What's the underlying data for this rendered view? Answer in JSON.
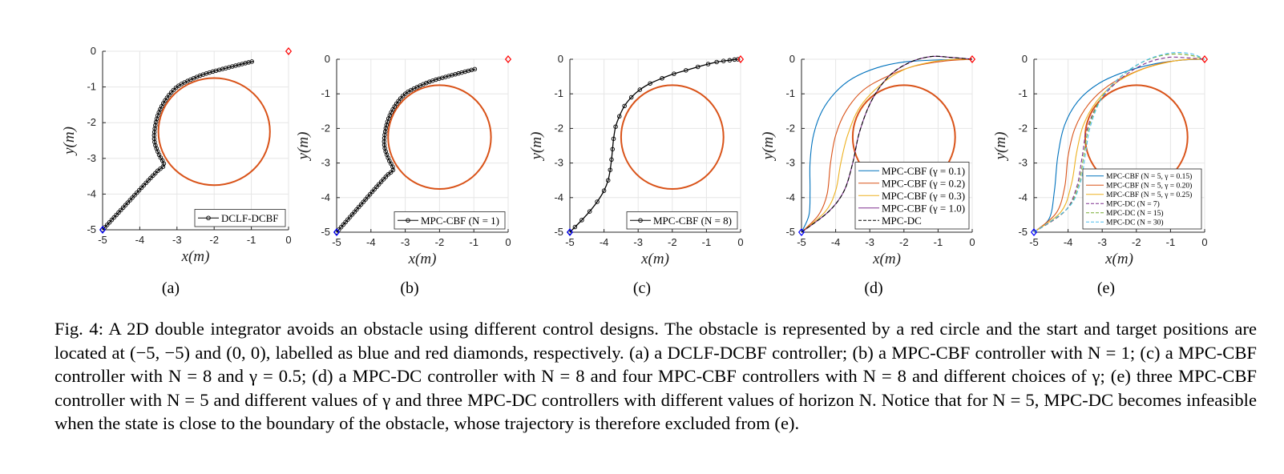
{
  "colors": {
    "obstacle": "#d95319",
    "start_marker": "#0000ff",
    "target_marker": "#ff0000",
    "grid": "#e6e6e6",
    "axis": "#262626"
  },
  "chart_data": [
    {
      "id": "a",
      "type": "line",
      "sublabel": "(a)",
      "xlabel": "x(m)",
      "ylabel": "y(m)",
      "xlim": [
        -5,
        0
      ],
      "ylim": [
        -5,
        0
      ],
      "xticks": [
        -5,
        -4,
        -3,
        -2,
        -1,
        0
      ],
      "yticks": [
        0,
        -1,
        -2,
        -3,
        -4,
        -5
      ],
      "grid": true,
      "legend_position": "bottom-right",
      "obstacle": {
        "center": [
          -2,
          -2.25
        ],
        "radius": 1.5
      },
      "start": [
        -5,
        -5
      ],
      "target": [
        0,
        0
      ],
      "series": [
        {
          "name": "DCLF-DCBF",
          "color": "#000000",
          "marker": "circle",
          "markers_dense": true,
          "points": [
            [
              -5,
              -5
            ],
            [
              -4.6,
              -4.55
            ],
            [
              -4.2,
              -4.1
            ],
            [
              -3.8,
              -3.65
            ],
            [
              -3.52,
              -3.35
            ],
            [
              -3.35,
              -3.18
            ],
            [
              -3.48,
              -2.9
            ],
            [
              -3.6,
              -2.55
            ],
            [
              -3.6,
              -2.2
            ],
            [
              -3.5,
              -1.75
            ],
            [
              -3.3,
              -1.35
            ],
            [
              -3.0,
              -1.0
            ],
            [
              -2.6,
              -0.78
            ],
            [
              -2.2,
              -0.62
            ],
            [
              -1.6,
              -0.45
            ],
            [
              -0.95,
              -0.28
            ]
          ]
        }
      ]
    },
    {
      "id": "b",
      "type": "line",
      "sublabel": "(b)",
      "xlabel": "x(m)",
      "ylabel": "y(m)",
      "xlim": [
        -5,
        0
      ],
      "ylim": [
        -5,
        0
      ],
      "xticks": [
        -5,
        -4,
        -3,
        -2,
        -1,
        0
      ],
      "yticks": [
        0,
        -1,
        -2,
        -3,
        -4,
        -5
      ],
      "grid": true,
      "legend_position": "bottom-right",
      "obstacle": {
        "center": [
          -2,
          -2.25
        ],
        "radius": 1.5
      },
      "start": [
        -5,
        -5
      ],
      "target": [
        0,
        0
      ],
      "series": [
        {
          "name": "MPC-CBF (N = 1)",
          "color": "#000000",
          "marker": "circle",
          "markers_dense": true,
          "points": [
            [
              -5,
              -5
            ],
            [
              -4.6,
              -4.55
            ],
            [
              -4.2,
              -4.1
            ],
            [
              -3.8,
              -3.65
            ],
            [
              -3.52,
              -3.35
            ],
            [
              -3.35,
              -3.18
            ],
            [
              -3.48,
              -2.9
            ],
            [
              -3.6,
              -2.55
            ],
            [
              -3.6,
              -2.2
            ],
            [
              -3.5,
              -1.75
            ],
            [
              -3.3,
              -1.35
            ],
            [
              -3.0,
              -1.0
            ],
            [
              -2.6,
              -0.78
            ],
            [
              -2.2,
              -0.62
            ],
            [
              -1.6,
              -0.45
            ],
            [
              -0.95,
              -0.28
            ]
          ]
        }
      ]
    },
    {
      "id": "c",
      "type": "line",
      "sublabel": "(c)",
      "xlabel": "x(m)",
      "ylabel": "y(m)",
      "xlim": [
        -5,
        0
      ],
      "ylim": [
        -5,
        0
      ],
      "xticks": [
        -5,
        -4,
        -3,
        -2,
        -1,
        0
      ],
      "yticks": [
        0,
        -1,
        -2,
        -3,
        -4,
        -5
      ],
      "grid": true,
      "legend_position": "bottom-right",
      "obstacle": {
        "center": [
          -2,
          -2.25
        ],
        "radius": 1.5
      },
      "start": [
        -5,
        -5
      ],
      "target": [
        0,
        0
      ],
      "series": [
        {
          "name": "MPC-CBF (N = 8)",
          "color": "#000000",
          "marker": "circle",
          "markers_dense": false,
          "points": [
            [
              -5,
              -5
            ],
            [
              -4.85,
              -4.85
            ],
            [
              -4.65,
              -4.65
            ],
            [
              -4.42,
              -4.4
            ],
            [
              -4.2,
              -4.12
            ],
            [
              -4.0,
              -3.8
            ],
            [
              -3.88,
              -3.5
            ],
            [
              -3.82,
              -3.2
            ],
            [
              -3.78,
              -2.9
            ],
            [
              -3.75,
              -2.6
            ],
            [
              -3.72,
              -2.3
            ],
            [
              -3.66,
              -1.95
            ],
            [
              -3.55,
              -1.65
            ],
            [
              -3.4,
              -1.35
            ],
            [
              -3.2,
              -1.1
            ],
            [
              -2.95,
              -0.88
            ],
            [
              -2.65,
              -0.7
            ],
            [
              -2.3,
              -0.55
            ],
            [
              -1.95,
              -0.42
            ],
            [
              -1.6,
              -0.32
            ],
            [
              -1.25,
              -0.22
            ],
            [
              -0.95,
              -0.14
            ],
            [
              -0.7,
              -0.08
            ],
            [
              -0.5,
              -0.05
            ],
            [
              -0.32,
              -0.03
            ],
            [
              -0.18,
              -0.01
            ],
            [
              -0.08,
              0
            ]
          ]
        }
      ]
    },
    {
      "id": "d",
      "type": "line",
      "sublabel": "(d)",
      "xlabel": "x(m)",
      "ylabel": "y(m)",
      "xlim": [
        -5,
        0
      ],
      "ylim": [
        -5,
        0
      ],
      "xticks": [
        -5,
        -4,
        -3,
        -2,
        -1,
        0
      ],
      "yticks": [
        0,
        -1,
        -2,
        -3,
        -4,
        -5
      ],
      "grid": true,
      "legend_position": "bottom-right",
      "obstacle": {
        "center": [
          -2,
          -2.25
        ],
        "radius": 1.5
      },
      "start": [
        -5,
        -5
      ],
      "target": [
        0,
        0
      ],
      "series": [
        {
          "name": "MPC-CBF (γ = 0.1)",
          "color": "#0072bd",
          "dash": false,
          "points": [
            [
              -5,
              -5
            ],
            [
              -4.78,
              -4.5
            ],
            [
              -4.75,
              -3.8
            ],
            [
              -4.75,
              -3.0
            ],
            [
              -4.65,
              -2.2
            ],
            [
              -4.4,
              -1.5
            ],
            [
              -4.0,
              -0.95
            ],
            [
              -3.5,
              -0.55
            ],
            [
              -2.8,
              -0.25
            ],
            [
              -2.0,
              -0.08
            ],
            [
              -1.0,
              -0.02
            ],
            [
              0,
              0
            ]
          ]
        },
        {
          "name": "MPC-CBF (γ = 0.2)",
          "color": "#d95319",
          "dash": false,
          "points": [
            [
              -5,
              -5
            ],
            [
              -4.5,
              -4.5
            ],
            [
              -4.25,
              -3.9
            ],
            [
              -4.15,
              -3.0
            ],
            [
              -4.0,
              -2.2
            ],
            [
              -3.7,
              -1.5
            ],
            [
              -3.2,
              -0.9
            ],
            [
              -2.5,
              -0.5
            ],
            [
              -1.7,
              -0.2
            ],
            [
              -0.8,
              -0.05
            ],
            [
              0,
              0
            ]
          ]
        },
        {
          "name": "MPC-CBF (γ = 0.3)",
          "color": "#edb120",
          "dash": false,
          "points": [
            [
              -5,
              -5
            ],
            [
              -4.3,
              -4.4
            ],
            [
              -4.0,
              -3.8
            ],
            [
              -3.85,
              -3.0
            ],
            [
              -3.65,
              -2.2
            ],
            [
              -3.3,
              -1.4
            ],
            [
              -2.7,
              -0.75
            ],
            [
              -2.0,
              -0.3
            ],
            [
              -1.2,
              -0.08
            ],
            [
              -0.5,
              0
            ],
            [
              0,
              0
            ]
          ]
        },
        {
          "name": "MPC-CBF (γ = 1.0)",
          "color": "#7e2f8e",
          "dash": false,
          "points": [
            [
              -5,
              -5
            ],
            [
              -4.2,
              -4.4
            ],
            [
              -3.75,
              -3.8
            ],
            [
              -3.5,
              -3.0
            ],
            [
              -3.3,
              -2.1
            ],
            [
              -2.95,
              -1.2
            ],
            [
              -2.45,
              -0.5
            ],
            [
              -1.85,
              -0.1
            ],
            [
              -1.2,
              0.08
            ],
            [
              -0.6,
              0.05
            ],
            [
              0,
              0
            ]
          ]
        },
        {
          "name": "MPC-DC",
          "color": "#000000",
          "dash": true,
          "points": [
            [
              -5,
              -5
            ],
            [
              -4.2,
              -4.4
            ],
            [
              -3.75,
              -3.8
            ],
            [
              -3.5,
              -3.0
            ],
            [
              -3.3,
              -2.1
            ],
            [
              -2.95,
              -1.2
            ],
            [
              -2.45,
              -0.5
            ],
            [
              -1.85,
              -0.1
            ],
            [
              -1.2,
              0.08
            ],
            [
              -0.6,
              0.05
            ],
            [
              0,
              0
            ]
          ]
        }
      ]
    },
    {
      "id": "e",
      "type": "line",
      "sublabel": "(e)",
      "xlabel": "x(m)",
      "ylabel": "y(m)",
      "xlim": [
        -5,
        0
      ],
      "ylim": [
        -5,
        0
      ],
      "xticks": [
        -5,
        -4,
        -3,
        -2,
        -1,
        0
      ],
      "yticks": [
        0,
        -1,
        -2,
        -3,
        -4,
        -5
      ],
      "grid": true,
      "legend_position": "bottom-right",
      "obstacle": {
        "center": [
          -2,
          -2.25
        ],
        "radius": 1.5
      },
      "start": [
        -5,
        -5
      ],
      "target": [
        0,
        0
      ],
      "series": [
        {
          "name": "MPC-CBF (N = 5, γ = 0.15)",
          "color": "#0072bd",
          "dash": false,
          "points": [
            [
              -5,
              -5
            ],
            [
              -4.55,
              -4.6
            ],
            [
              -4.4,
              -3.8
            ],
            [
              -4.3,
              -2.8
            ],
            [
              -4.1,
              -1.9
            ],
            [
              -3.7,
              -1.2
            ],
            [
              -3.1,
              -0.7
            ],
            [
              -2.3,
              -0.35
            ],
            [
              -1.4,
              -0.12
            ],
            [
              -0.6,
              -0.02
            ],
            [
              0,
              0
            ]
          ]
        },
        {
          "name": "MPC-CBF (N = 5, γ = 0.20)",
          "color": "#d95319",
          "dash": false,
          "points": [
            [
              -5,
              -5
            ],
            [
              -4.35,
              -4.45
            ],
            [
              -4.1,
              -3.7
            ],
            [
              -4.0,
              -2.8
            ],
            [
              -3.8,
              -2.0
            ],
            [
              -3.4,
              -1.3
            ],
            [
              -2.8,
              -0.75
            ],
            [
              -2.0,
              -0.35
            ],
            [
              -1.2,
              -0.1
            ],
            [
              -0.5,
              -0.01
            ],
            [
              0,
              0
            ]
          ]
        },
        {
          "name": "MPC-CBF (N = 5, γ = 0.25)",
          "color": "#edb120",
          "dash": false,
          "points": [
            [
              -5,
              -5
            ],
            [
              -4.2,
              -4.4
            ],
            [
              -3.9,
              -3.6
            ],
            [
              -3.75,
              -2.7
            ],
            [
              -3.55,
              -1.9
            ],
            [
              -3.15,
              -1.2
            ],
            [
              -2.55,
              -0.65
            ],
            [
              -1.8,
              -0.28
            ],
            [
              -1.0,
              -0.07
            ],
            [
              -0.4,
              0
            ],
            [
              0,
              0
            ]
          ]
        },
        {
          "name": "MPC-DC (N = 7)",
          "color": "#7e2f8e",
          "dash": true,
          "points": [
            [
              -5,
              -5
            ],
            [
              -4.1,
              -4.4
            ],
            [
              -3.75,
              -3.7
            ],
            [
              -3.6,
              -2.9
            ],
            [
              -3.45,
              -2.05
            ],
            [
              -3.1,
              -1.25
            ],
            [
              -2.5,
              -0.6
            ],
            [
              -1.8,
              -0.15
            ],
            [
              -1.1,
              0.05
            ],
            [
              -0.5,
              0.04
            ],
            [
              0,
              0
            ]
          ]
        },
        {
          "name": "MPC-DC (N = 15)",
          "color": "#77ac30",
          "dash": true,
          "points": [
            [
              -5,
              -5
            ],
            [
              -4.05,
              -4.35
            ],
            [
              -3.7,
              -3.65
            ],
            [
              -3.55,
              -2.85
            ],
            [
              -3.4,
              -2.0
            ],
            [
              -3.05,
              -1.15
            ],
            [
              -2.45,
              -0.5
            ],
            [
              -1.75,
              -0.05
            ],
            [
              -1.05,
              0.14
            ],
            [
              -0.45,
              0.12
            ],
            [
              0,
              0
            ]
          ]
        },
        {
          "name": "MPC-DC (N = 30)",
          "color": "#4dbeee",
          "dash": true,
          "points": [
            [
              -5,
              -5
            ],
            [
              -4.0,
              -4.3
            ],
            [
              -3.65,
              -3.6
            ],
            [
              -3.5,
              -2.8
            ],
            [
              -3.35,
              -1.95
            ],
            [
              -3.0,
              -1.1
            ],
            [
              -2.4,
              -0.45
            ],
            [
              -1.7,
              -0.02
            ],
            [
              -1.0,
              0.18
            ],
            [
              -0.4,
              0.16
            ],
            [
              0,
              0
            ]
          ]
        }
      ]
    }
  ],
  "caption": {
    "label": "Fig. 4:",
    "text": "A 2D double integrator avoids an obstacle using different control designs. The obstacle is represented by a red circle and the start and target positions are located at (−5, −5) and (0, 0), labelled as blue and red diamonds, respectively. (a) a DCLF-DCBF controller; (b) a MPC-CBF controller with N = 1; (c) a MPC-CBF controller with N = 8 and γ = 0.5; (d) a MPC-DC controller with N = 8 and four MPC-CBF controllers with N = 8 and different choices of γ; (e) three MPC-CBF controller with N = 5 and different values of γ and three MPC-DC controllers with different values of horizon N. Notice that for N = 5, MPC-DC becomes infeasible when the state is close to the boundary of the obstacle, whose trajectory is therefore excluded from (e)."
  }
}
